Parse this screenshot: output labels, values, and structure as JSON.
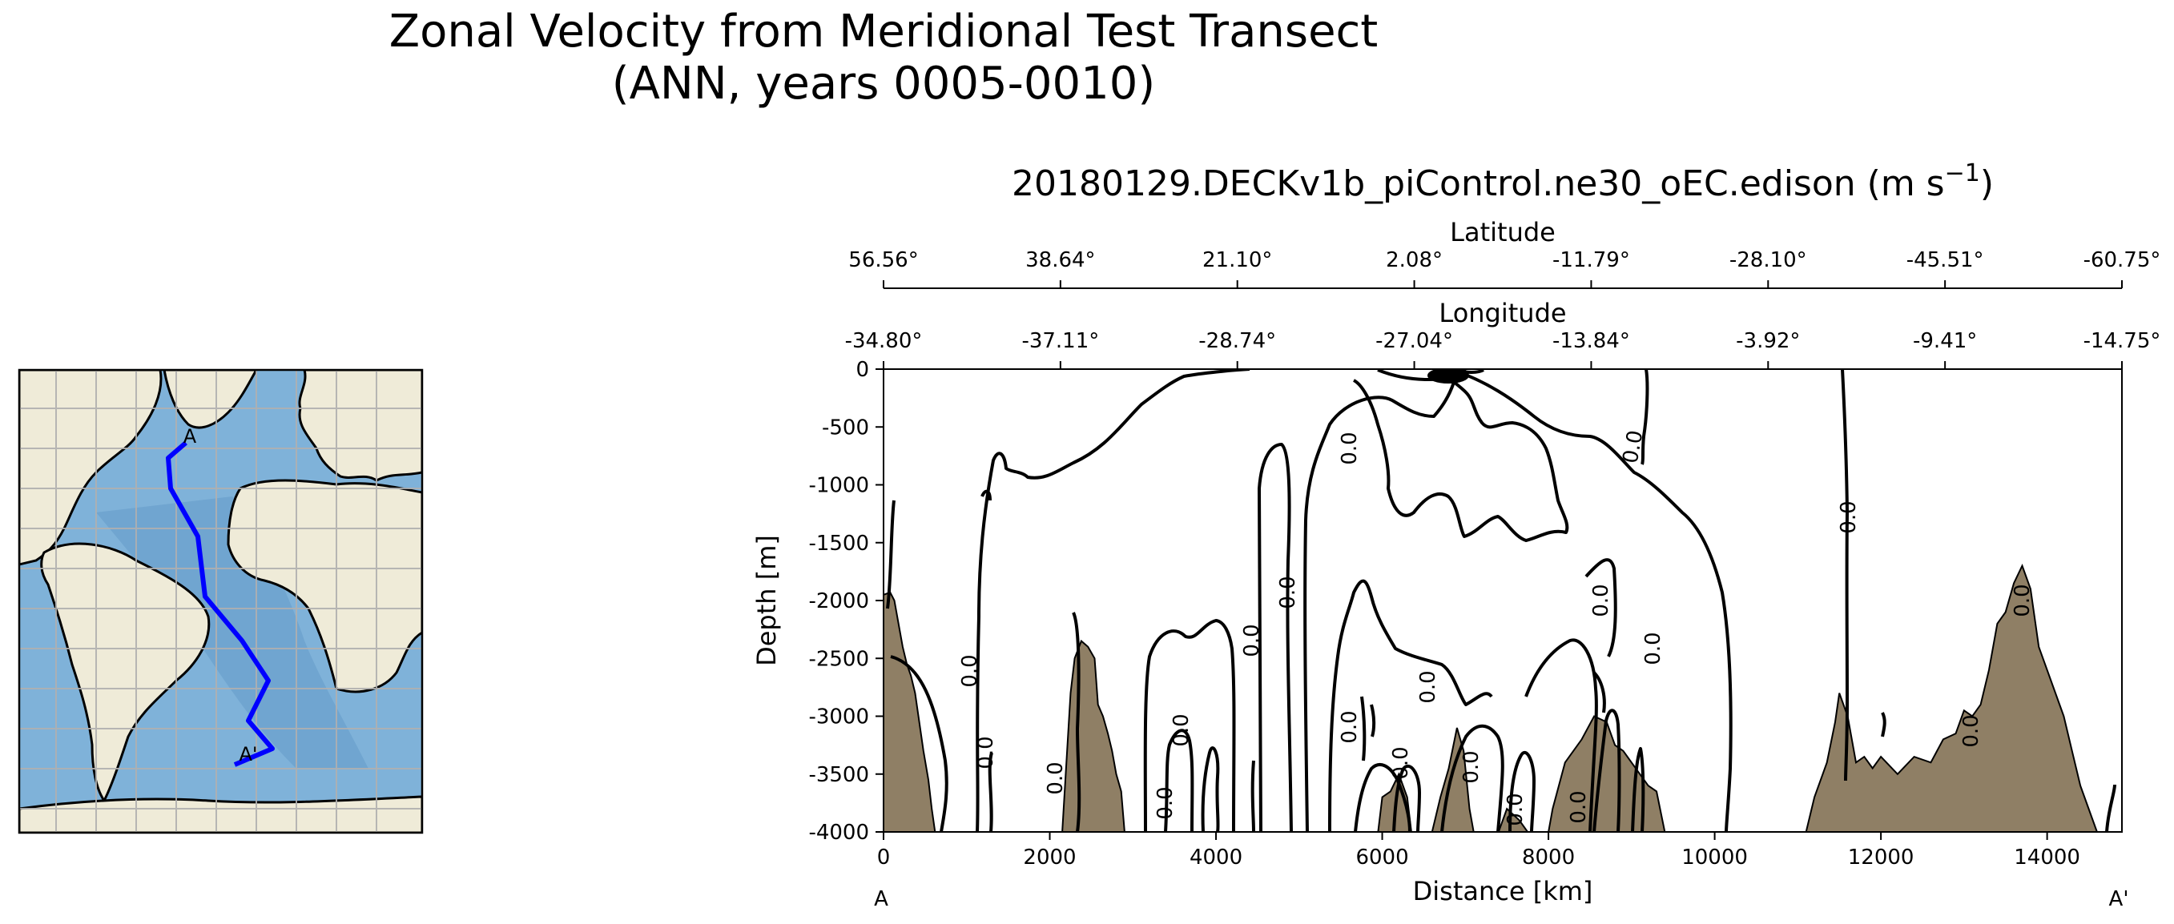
{
  "figure": {
    "title_line1": "Zonal Velocity from Meridional Test Transect",
    "title_line2": "(ANN, years 0005-0010)"
  },
  "map_inset": {
    "label_start": "A",
    "label_end": "A'",
    "colors": {
      "ocean": "#7fb2d9",
      "land": "#efebd8",
      "coast": "#000000",
      "grid": "#b0b0b0",
      "transect": "#0000ff"
    }
  },
  "chart_data": {
    "type": "contour",
    "title": "20180129.DECKv1b_piControl.ne30_oEC.edison (m s",
    "title_units_sup": "−1",
    "title_units_close": ")",
    "xlabel": "Distance [km]",
    "ylabel": "Depth [m]",
    "xlim": [
      0,
      14900
    ],
    "ylim": [
      -4000,
      0
    ],
    "xticks": [
      0,
      2000,
      4000,
      6000,
      8000,
      10000,
      12000,
      14000
    ],
    "yticks": [
      0,
      -500,
      -1000,
      -1500,
      -2000,
      -2500,
      -3000,
      -3500,
      -4000
    ],
    "x_endpoint_labels": [
      "A",
      "A'"
    ],
    "top_axes": [
      {
        "label": "Latitude",
        "ticks": [
          "56.56°",
          "38.64°",
          "21.10°",
          "2.08°",
          "-11.79°",
          "-28.10°",
          "-45.51°",
          "-60.75°"
        ]
      },
      {
        "label": "Longitude",
        "ticks": [
          "-34.80°",
          "-37.11°",
          "-28.74°",
          "-27.04°",
          "-13.84°",
          "-3.92°",
          "-9.41°",
          "-14.75°"
        ]
      }
    ],
    "contour_label": "0.0",
    "colors": {
      "bathymetry": "#8f7f65",
      "contour": "#000000"
    },
    "bathymetry_profile": [
      [
        0,
        -1950
      ],
      [
        80,
        -1930
      ],
      [
        130,
        -2000
      ],
      [
        180,
        -2200
      ],
      [
        230,
        -2400
      ],
      [
        280,
        -2550
      ],
      [
        330,
        -2650
      ],
      [
        380,
        -2800
      ],
      [
        430,
        -3050
      ],
      [
        480,
        -3300
      ],
      [
        540,
        -3550
      ],
      [
        580,
        -3800
      ],
      [
        620,
        -4000
      ],
      [
        2150,
        -4000
      ],
      [
        2200,
        -3400
      ],
      [
        2250,
        -2800
      ],
      [
        2300,
        -2500
      ],
      [
        2380,
        -2350
      ],
      [
        2460,
        -2400
      ],
      [
        2540,
        -2500
      ],
      [
        2580,
        -2900
      ],
      [
        2640,
        -3000
      ],
      [
        2700,
        -3150
      ],
      [
        2750,
        -3300
      ],
      [
        2800,
        -3500
      ],
      [
        2860,
        -3650
      ],
      [
        2900,
        -4000
      ],
      [
        5950,
        -4000
      ],
      [
        6000,
        -3700
      ],
      [
        6100,
        -3650
      ],
      [
        6200,
        -3500
      ],
      [
        6300,
        -3700
      ],
      [
        6350,
        -4000
      ],
      [
        6600,
        -4000
      ],
      [
        6650,
        -3850
      ],
      [
        6700,
        -3700
      ],
      [
        6800,
        -3450
      ],
      [
        6900,
        -3100
      ],
      [
        6980,
        -3300
      ],
      [
        7050,
        -3800
      ],
      [
        7100,
        -4000
      ],
      [
        7400,
        -4000
      ],
      [
        7500,
        -3800
      ],
      [
        7650,
        -3900
      ],
      [
        7750,
        -4000
      ],
      [
        8000,
        -4000
      ],
      [
        8050,
        -3800
      ],
      [
        8200,
        -3400
      ],
      [
        8400,
        -3200
      ],
      [
        8550,
        -3000
      ],
      [
        8700,
        -3050
      ],
      [
        8800,
        -3250
      ],
      [
        8900,
        -3300
      ],
      [
        9000,
        -3400
      ],
      [
        9100,
        -3500
      ],
      [
        9200,
        -3600
      ],
      [
        9300,
        -3650
      ],
      [
        9400,
        -4000
      ],
      [
        11100,
        -4000
      ],
      [
        11200,
        -3700
      ],
      [
        11300,
        -3500
      ],
      [
        11350,
        -3400
      ],
      [
        11450,
        -3050
      ],
      [
        11500,
        -2800
      ],
      [
        11600,
        -3000
      ],
      [
        11700,
        -3400
      ],
      [
        11800,
        -3350
      ],
      [
        11900,
        -3450
      ],
      [
        12000,
        -3350
      ],
      [
        12200,
        -3500
      ],
      [
        12400,
        -3350
      ],
      [
        12600,
        -3400
      ],
      [
        12750,
        -3200
      ],
      [
        12900,
        -3150
      ],
      [
        13000,
        -2950
      ],
      [
        13100,
        -3000
      ],
      [
        13200,
        -2900
      ],
      [
        13300,
        -2600
      ],
      [
        13400,
        -2200
      ],
      [
        13500,
        -2100
      ],
      [
        13600,
        -1850
      ],
      [
        13700,
        -1700
      ],
      [
        13800,
        -1900
      ],
      [
        13900,
        -2400
      ],
      [
        14000,
        -2600
      ],
      [
        14100,
        -2800
      ],
      [
        14200,
        -3000
      ],
      [
        14300,
        -3300
      ],
      [
        14400,
        -3600
      ],
      [
        14500,
        -3800
      ],
      [
        14600,
        -4000
      ]
    ]
  }
}
